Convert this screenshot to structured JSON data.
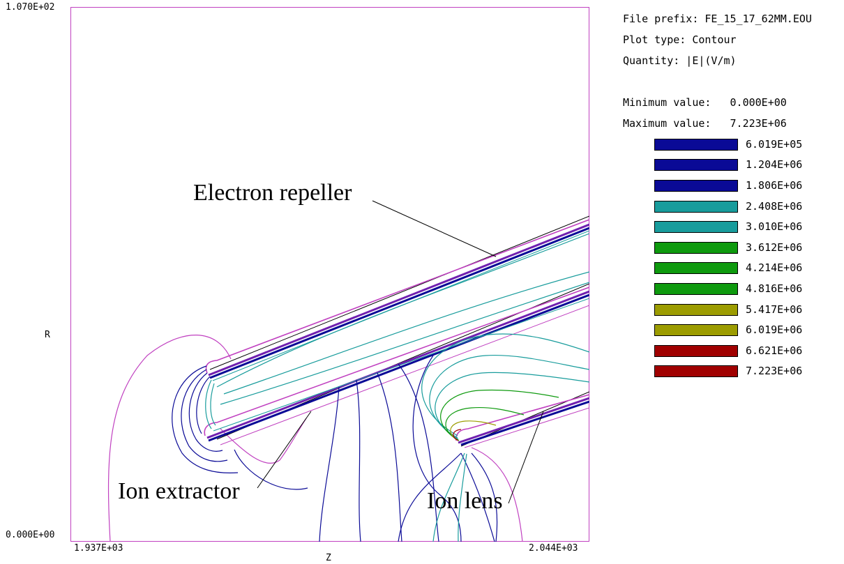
{
  "axes": {
    "r_max": "1.070E+02",
    "r_min": "0.000E+00",
    "z_min": "1.937E+03",
    "z_max": "2.044E+03",
    "r_label": "R",
    "z_label": "Z"
  },
  "annotations": {
    "electron_repeller": "Electron repeller",
    "ion_extractor": "Ion extractor",
    "ion_lens": "Ion lens"
  },
  "info": {
    "file_prefix": "File prefix: FE_15_17_62MM.EOU",
    "plot_type": "Plot type: Contour",
    "quantity": "Quantity: |E|(V/m)",
    "min_value": "Minimum value:   0.000E+00",
    "max_value": "Maximum value:   7.223E+06"
  },
  "legend": [
    {
      "value": "6.019E+05",
      "color": "#0a0a96"
    },
    {
      "value": "1.204E+06",
      "color": "#0a0a96"
    },
    {
      "value": "1.806E+06",
      "color": "#0a0a96"
    },
    {
      "value": "2.408E+06",
      "color": "#189c9c"
    },
    {
      "value": "3.010E+06",
      "color": "#189c9c"
    },
    {
      "value": "3.612E+06",
      "color": "#0e9a0e"
    },
    {
      "value": "4.214E+06",
      "color": "#0e9a0e"
    },
    {
      "value": "4.816E+06",
      "color": "#0e9a0e"
    },
    {
      "value": "5.417E+06",
      "color": "#9c9c00"
    },
    {
      "value": "6.019E+06",
      "color": "#9c9c00"
    },
    {
      "value": "6.621E+06",
      "color": "#a00000"
    },
    {
      "value": "7.223E+06",
      "color": "#a00000"
    }
  ],
  "colors": {
    "frame": "#c040c0",
    "boundary": "#000000",
    "blue": "#0a0a96",
    "cyan": "#189c9c",
    "green": "#0e9a0e",
    "olive": "#9c9c00",
    "red": "#a00000"
  }
}
